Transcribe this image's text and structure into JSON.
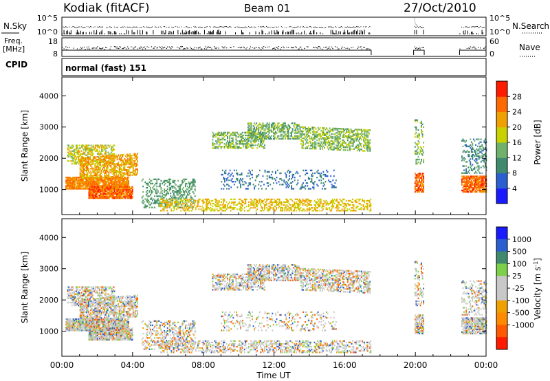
{
  "header": {
    "station": "Kodiak (fitACF)",
    "beam": "Beam 01",
    "date": "27/Oct/2010"
  },
  "status_panels": {
    "nsky_label": "N.Sky",
    "nsearch_label": "N.Search",
    "noise_ticks": [
      "10^5",
      "10^0"
    ],
    "freq_label_line1": "Freq.",
    "freq_label_line2": "[MHz]",
    "freq_ticks": [
      "18",
      "8"
    ],
    "nave_label": "Nave",
    "nave_ticks": [
      "60",
      "0"
    ],
    "cpid_label": "CPID",
    "cpid_value": "normal (fast) 151"
  },
  "colors": {
    "power_scale": [
      "#1a1aff",
      "#2b5fd0",
      "#3f8a6e",
      "#6fb06a",
      "#c8d200",
      "#f0a000",
      "#ff6a00",
      "#ff1a00"
    ],
    "velocity_scale": [
      "#1a1aff",
      "#2b5fd0",
      "#3f8a6e",
      "#7cd04a",
      "#c8c8c8",
      "#c8c8c8",
      "#f0a000",
      "#ff8a00",
      "#ff5a00",
      "#ff1a00"
    ]
  },
  "chart_data": [
    {
      "type": "heatmap",
      "quantity": "power",
      "xlabel": "",
      "ylabel": "Slant Range [km]",
      "xlim": [
        0,
        24
      ],
      "ylim": [
        200,
        4600
      ],
      "yticks": [
        1000,
        2000,
        3000,
        4000
      ],
      "colorbar_label": "Power [dB]",
      "colorbar_ticks": [
        4,
        8,
        12,
        16,
        20,
        24,
        28
      ],
      "colorbar_range": [
        0,
        32
      ]
    },
    {
      "type": "heatmap",
      "quantity": "velocity",
      "xlabel": "Time UT",
      "ylabel": "Slant Range [km]",
      "xlim": [
        0,
        24
      ],
      "ylim": [
        200,
        4600
      ],
      "xticks": [
        "00:00",
        "04:00",
        "08:00",
        "12:00",
        "16:00",
        "20:00",
        "00:00"
      ],
      "yticks": [
        1000,
        2000,
        3000,
        4000
      ],
      "colorbar_label": "Velocity [m s^-1]",
      "colorbar_ticks": [
        1000,
        500,
        100,
        25,
        -25,
        -100,
        -500,
        -1000
      ]
    }
  ],
  "data_coverage_hours": [
    [
      0,
      17.5
    ],
    [
      19.9,
      20.5
    ],
    [
      22.5,
      24
    ]
  ]
}
